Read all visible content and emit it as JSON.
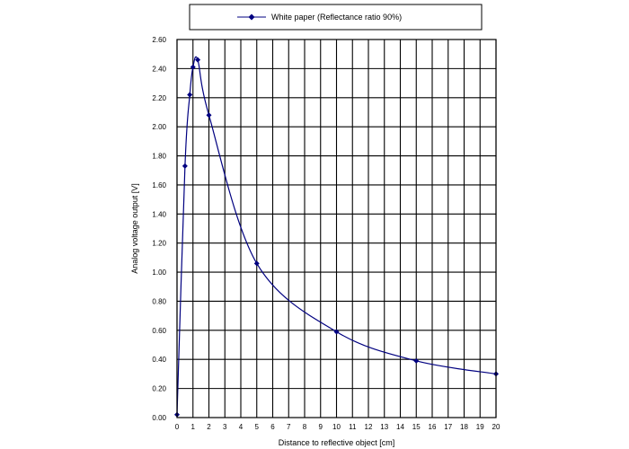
{
  "chart_data": {
    "type": "line",
    "xlabel": "Distance to reflective object [cm]",
    "ylabel": "Analog voltage output [V]",
    "xlim": [
      0,
      20
    ],
    "ylim": [
      0,
      2.6
    ],
    "x_ticks": [
      "0",
      "1",
      "2",
      "3",
      "4",
      "5",
      "6",
      "7",
      "8",
      "9",
      "10",
      "11",
      "12",
      "13",
      "14",
      "15",
      "16",
      "17",
      "18",
      "19",
      "20"
    ],
    "y_ticks": [
      "0.00",
      "0.20",
      "0.40",
      "0.60",
      "0.80",
      "1.00",
      "1.20",
      "1.40",
      "1.60",
      "1.80",
      "2.00",
      "2.20",
      "2.40",
      "2.60"
    ],
    "grid": true,
    "legend_position": "top",
    "series": [
      {
        "name": "White paper (Reflectance ratio 90%)",
        "color": "#000080",
        "marker": "diamond",
        "x": [
          0,
          0.5,
          0.8,
          1.0,
          1.3,
          2.0,
          5.0,
          10.0,
          15.0,
          20.0
        ],
        "y": [
          0.02,
          1.73,
          2.22,
          2.41,
          2.46,
          2.08,
          1.06,
          0.59,
          0.39,
          0.3
        ]
      }
    ]
  }
}
